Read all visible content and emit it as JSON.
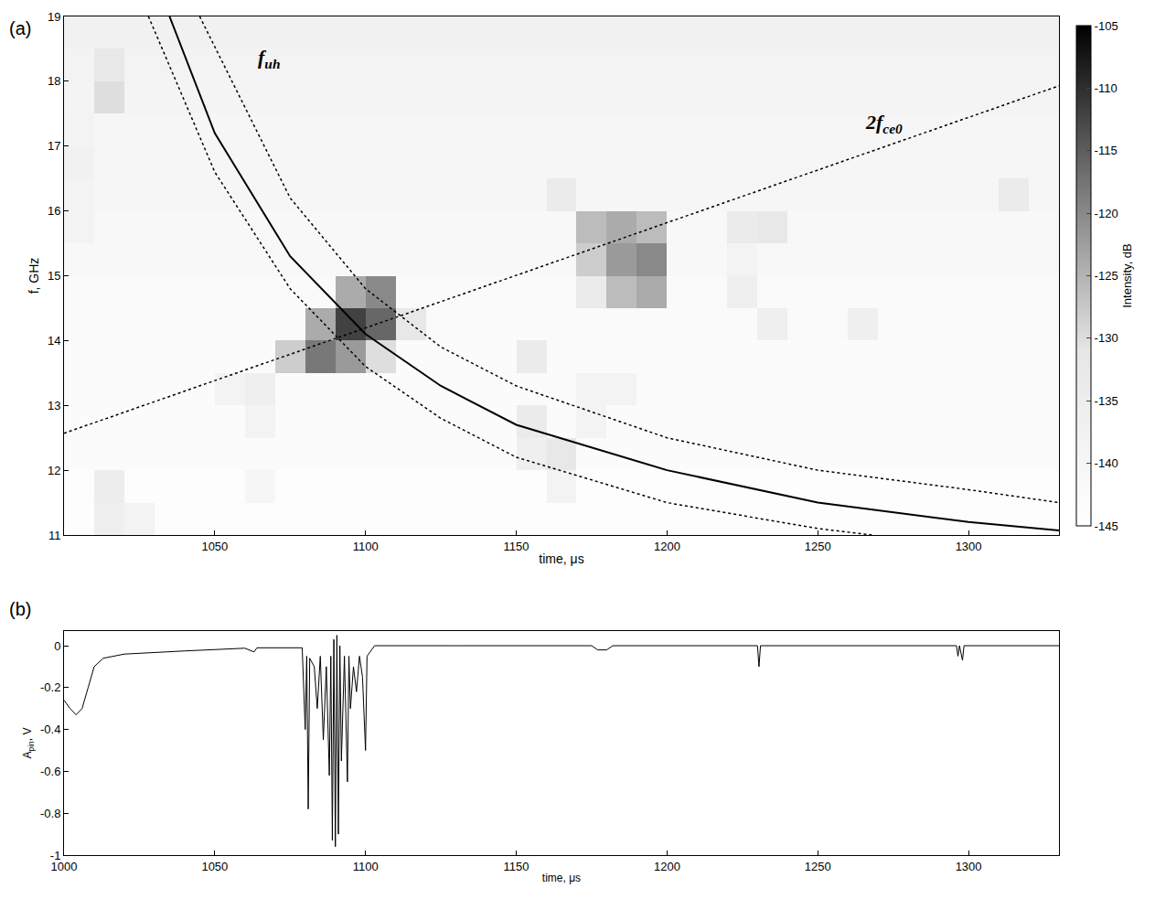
{
  "chart_data": [
    {
      "type": "heatmap",
      "panel": "(a)",
      "xlabel": "time, μs",
      "ylabel": "f, GHz",
      "xlim": [
        1000,
        1330
      ],
      "ylim": [
        11,
        19
      ],
      "xticks": [
        1050,
        1100,
        1150,
        1200,
        1250,
        1300
      ],
      "yticks": [
        11,
        12,
        13,
        14,
        15,
        16,
        17,
        18,
        19
      ],
      "x": [
        1005,
        1015,
        1025,
        1035,
        1045,
        1055,
        1065,
        1075,
        1085,
        1095,
        1105,
        1115,
        1125,
        1135,
        1145,
        1155,
        1165,
        1175,
        1185,
        1195,
        1205,
        1215,
        1225,
        1235,
        1245,
        1255,
        1265,
        1275,
        1285,
        1295,
        1305,
        1315,
        1325
      ],
      "y": [
        11.25,
        11.75,
        12.25,
        12.75,
        13.25,
        13.75,
        14.25,
        14.75,
        15.25,
        15.75,
        16.25,
        16.75,
        17.25,
        17.75,
        18.25,
        18.75
      ],
      "z": [
        [
          -144,
          -136,
          -138,
          -144,
          -144,
          -144,
          -144,
          -144,
          -144,
          -144,
          -144,
          -144,
          -144,
          -144,
          -144,
          -144,
          -144,
          -144,
          -144,
          -144,
          -144,
          -144,
          -144,
          -144,
          -144,
          -144,
          -144,
          -144,
          -144,
          -144,
          -144,
          -144,
          -144
        ],
        [
          -144,
          -135,
          -144,
          -144,
          -144,
          -144,
          -140,
          -144,
          -144,
          -144,
          -144,
          -144,
          -144,
          -144,
          -144,
          -144,
          -138,
          -144,
          -144,
          -144,
          -144,
          -144,
          -144,
          -144,
          -144,
          -144,
          -144,
          -144,
          -144,
          -144,
          -144,
          -144,
          -144
        ],
        [
          -143,
          -143,
          -143,
          -143,
          -143,
          -143,
          -143,
          -143,
          -143,
          -143,
          -143,
          -143,
          -143,
          -143,
          -143,
          -136,
          -132,
          -143,
          -143,
          -143,
          -143,
          -143,
          -143,
          -143,
          -143,
          -143,
          -143,
          -143,
          -143,
          -143,
          -143,
          -143,
          -143
        ],
        [
          -143,
          -143,
          -143,
          -143,
          -143,
          -143,
          -138,
          -143,
          -143,
          -143,
          -143,
          -143,
          -143,
          -143,
          -143,
          -134,
          -143,
          -138,
          -143,
          -143,
          -143,
          -143,
          -143,
          -143,
          -143,
          -143,
          -143,
          -143,
          -143,
          -143,
          -143,
          -143,
          -143
        ],
        [
          -143,
          -143,
          -143,
          -143,
          -143,
          -138,
          -136,
          -143,
          -143,
          -143,
          -143,
          -143,
          -143,
          -143,
          -143,
          -143,
          -143,
          -138,
          -138,
          -143,
          -143,
          -143,
          -143,
          -143,
          -143,
          -143,
          -143,
          -143,
          -143,
          -143,
          -143,
          -143,
          -143
        ],
        [
          -143,
          -143,
          -143,
          -143,
          -143,
          -143,
          -143,
          -128,
          -118,
          -122,
          -130,
          -143,
          -143,
          -143,
          -143,
          -134,
          -143,
          -143,
          -143,
          -143,
          -143,
          -143,
          -143,
          -143,
          -143,
          -143,
          -143,
          -143,
          -143,
          -143,
          -143,
          -143,
          -143
        ],
        [
          -142,
          -142,
          -142,
          -142,
          -142,
          -142,
          -142,
          -142,
          -124,
          -112,
          -116,
          -132,
          -142,
          -142,
          -142,
          -142,
          -142,
          -142,
          -142,
          -142,
          -142,
          -142,
          -142,
          -136,
          -142,
          -142,
          -136,
          -142,
          -142,
          -142,
          -142,
          -142,
          -142
        ],
        [
          -142,
          -142,
          -142,
          -142,
          -142,
          -142,
          -142,
          -142,
          -142,
          -124,
          -120,
          -142,
          -142,
          -142,
          -142,
          -142,
          -142,
          -134,
          -126,
          -124,
          -142,
          -142,
          -136,
          -142,
          -142,
          -142,
          -142,
          -142,
          -142,
          -142,
          -142,
          -142,
          -142
        ],
        [
          -141,
          -141,
          -141,
          -141,
          -141,
          -141,
          -141,
          -141,
          -141,
          -141,
          -141,
          -141,
          -141,
          -141,
          -141,
          -141,
          -141,
          -128,
          -122,
          -120,
          -141,
          -141,
          -138,
          -141,
          -141,
          -141,
          -141,
          -141,
          -141,
          -141,
          -141,
          -141,
          -141
        ],
        [
          -138,
          -141,
          -141,
          -141,
          -141,
          -141,
          -141,
          -141,
          -141,
          -141,
          -141,
          -141,
          -141,
          -141,
          -141,
          -141,
          -141,
          -126,
          -124,
          -126,
          -141,
          -141,
          -134,
          -132,
          -141,
          -141,
          -141,
          -141,
          -141,
          -141,
          -141,
          -141,
          -141
        ],
        [
          -138,
          -140,
          -140,
          -140,
          -140,
          -140,
          -140,
          -140,
          -140,
          -140,
          -140,
          -140,
          -140,
          -140,
          -140,
          -140,
          -134,
          -140,
          -140,
          -140,
          -140,
          -140,
          -140,
          -140,
          -140,
          -140,
          -140,
          -140,
          -140,
          -140,
          -140,
          -134,
          -140
        ],
        [
          -137,
          -140,
          -140,
          -140,
          -140,
          -140,
          -140,
          -140,
          -140,
          -140,
          -140,
          -140,
          -140,
          -140,
          -140,
          -140,
          -140,
          -140,
          -140,
          -140,
          -140,
          -140,
          -140,
          -140,
          -140,
          -140,
          -140,
          -140,
          -140,
          -140,
          -140,
          -140,
          -140
        ],
        [
          -138,
          -140,
          -140,
          -140,
          -140,
          -140,
          -140,
          -140,
          -140,
          -140,
          -140,
          -140,
          -140,
          -140,
          -140,
          -140,
          -140,
          -140,
          -140,
          -140,
          -140,
          -140,
          -140,
          -140,
          -140,
          -140,
          -140,
          -140,
          -140,
          -140,
          -140,
          -140,
          -140
        ],
        [
          -139,
          -130,
          -139,
          -139,
          -139,
          -139,
          -139,
          -139,
          -139,
          -139,
          -139,
          -139,
          -139,
          -139,
          -139,
          -139,
          -139,
          -139,
          -139,
          -139,
          -139,
          -139,
          -139,
          -139,
          -139,
          -139,
          -139,
          -139,
          -139,
          -139,
          -139,
          -139,
          -139
        ],
        [
          -138,
          -132,
          -138,
          -138,
          -138,
          -138,
          -138,
          -138,
          -138,
          -138,
          -138,
          -138,
          -138,
          -138,
          -138,
          -138,
          -138,
          -138,
          -138,
          -138,
          -138,
          -138,
          -138,
          -138,
          -138,
          -138,
          -138,
          -138,
          -138,
          -138,
          -138,
          -138,
          -138
        ],
        [
          -137,
          -137,
          -137,
          -137,
          -137,
          -137,
          -137,
          -137,
          -137,
          -137,
          -137,
          -137,
          -137,
          -137,
          -137,
          -137,
          -137,
          -137,
          -137,
          -137,
          -137,
          -137,
          -137,
          -137,
          -137,
          -137,
          -137,
          -137,
          -137,
          -137,
          -137,
          -137,
          -137
        ]
      ],
      "colorbar": {
        "title": "Intensity, dB",
        "range": [
          -145,
          -105
        ],
        "ticks": [
          -145,
          -140,
          -135,
          -130,
          -125,
          -120,
          -115,
          -110,
          -105
        ]
      },
      "series": [
        {
          "type": "line",
          "color": "#000000",
          "line_style": "solid",
          "x": [
            1035,
            1050,
            1075,
            1100,
            1125,
            1150,
            1200,
            1250,
            1300,
            1330
          ],
          "values": [
            19,
            17.2,
            15.3,
            14.1,
            13.3,
            12.7,
            12.0,
            11.5,
            11.2,
            11.07
          ]
        },
        {
          "type": "line",
          "color": "#000000",
          "line_style": "dotted",
          "x": [
            1045,
            1075,
            1100,
            1125,
            1150,
            1200,
            1250,
            1300,
            1330
          ],
          "values": [
            19,
            16.2,
            14.8,
            13.9,
            13.3,
            12.5,
            12.0,
            11.7,
            11.5
          ]
        },
        {
          "type": "line",
          "color": "#000000",
          "line_style": "dotted",
          "x": [
            1028,
            1050,
            1075,
            1100,
            1125,
            1150,
            1200,
            1250,
            1268
          ],
          "values": [
            19,
            16.6,
            14.8,
            13.6,
            12.8,
            12.2,
            11.5,
            11.1,
            11.0
          ]
        },
        {
          "type": "line",
          "color": "#000000",
          "line_style": "dotted",
          "x": [
            1000,
            1330
          ],
          "values": [
            12.57,
            17.93
          ]
        }
      ],
      "annotations": [
        {
          "text": "f",
          "sub": "uh",
          "x": 1068,
          "y": 18.35
        },
        {
          "text": "2f",
          "sub": "ce0",
          "x": 1272,
          "y": 17.35
        }
      ]
    },
    {
      "type": "line",
      "panel": "(b)",
      "xlabel": "time, μs",
      "ylabel": {
        "text": "A",
        "sub": "pin",
        "rest": ", V"
      },
      "xlim": [
        1000,
        1330
      ],
      "ylim": [
        -1,
        0.07
      ],
      "xticks": [
        1000,
        1050,
        1100,
        1150,
        1200,
        1250,
        1300
      ],
      "yticks": [
        -1,
        -0.8,
        -0.6,
        -0.4,
        -0.2,
        0
      ],
      "color": "#000000",
      "x": [
        1000,
        1002,
        1004,
        1006,
        1008,
        1010,
        1013,
        1020,
        1040,
        1060,
        1063,
        1064,
        1079,
        1080,
        1080.5,
        1081,
        1081.5,
        1083,
        1084,
        1085,
        1086,
        1087,
        1088,
        1088.5,
        1089,
        1089.5,
        1090,
        1090.5,
        1091,
        1091.5,
        1092,
        1093,
        1094,
        1094.5,
        1095,
        1096,
        1097,
        1098,
        1099,
        1100,
        1100.5,
        1102,
        1103,
        1130,
        1175,
        1177,
        1180,
        1182,
        1230,
        1230.5,
        1231,
        1296,
        1296.5,
        1297,
        1298,
        1298.5,
        1330
      ],
      "values": [
        -0.26,
        -0.3,
        -0.33,
        -0.3,
        -0.2,
        -0.1,
        -0.06,
        -0.04,
        -0.025,
        -0.012,
        -0.03,
        -0.01,
        -0.01,
        -0.4,
        -0.05,
        -0.78,
        -0.06,
        -0.1,
        -0.3,
        -0.05,
        -0.45,
        -0.1,
        -0.62,
        -0.05,
        -0.93,
        0.03,
        -0.96,
        0.05,
        -0.9,
        0.0,
        -0.55,
        -0.05,
        -0.65,
        -0.05,
        -0.3,
        -0.1,
        -0.22,
        -0.05,
        -0.15,
        -0.5,
        -0.05,
        -0.02,
        0.0,
        0.0,
        0.0,
        -0.02,
        -0.02,
        0.0,
        0.0,
        -0.1,
        0.0,
        0.0,
        -0.05,
        0.0,
        -0.07,
        0.0,
        0.0
      ]
    }
  ]
}
